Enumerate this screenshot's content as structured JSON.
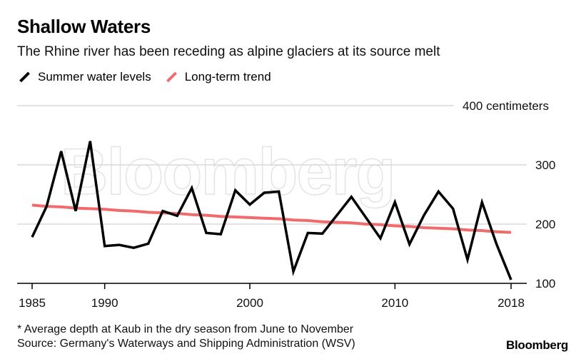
{
  "header": {
    "title": "Shallow Waters",
    "subtitle": "The Rhine river has been receding as alpine glaciers at its source melt"
  },
  "legend": {
    "items": [
      {
        "label": "Summer water levels",
        "color": "#000000"
      },
      {
        "label": "Long-term trend",
        "color": "#f06b6b"
      }
    ]
  },
  "footer": {
    "note": "* Average depth at Kaub in the dry season from June to November",
    "source": "Source: Germany's Waterways and Shipping Administration (WSV)",
    "brand": "Bloomberg",
    "watermark": "Bloomberg"
  },
  "chart_data": {
    "type": "line",
    "title": "Shallow Waters",
    "subtitle": "The Rhine river has been receding as alpine glaciers at its source melt",
    "xlabel": "",
    "ylabel": "",
    "xlim": [
      1985,
      2018
    ],
    "ylim": [
      100,
      400
    ],
    "x_ticks": [
      {
        "value": 1985,
        "label": "1985"
      },
      {
        "value": 1990,
        "label": "1990"
      },
      {
        "value": 2000,
        "label": "2000"
      },
      {
        "value": 2010,
        "label": "2010"
      },
      {
        "value": 2018,
        "label": "2018"
      }
    ],
    "y_ticks": [
      {
        "value": 100,
        "label": "100"
      },
      {
        "value": 200,
        "label": "200"
      },
      {
        "value": 300,
        "label": "300"
      },
      {
        "value": 400,
        "label": "400 centimeters"
      }
    ],
    "grid": true,
    "legend_position": "top-left",
    "x": [
      1985,
      1986,
      1987,
      1988,
      1989,
      1990,
      1991,
      1992,
      1993,
      1994,
      1995,
      1996,
      1997,
      1998,
      1999,
      2000,
      2001,
      2002,
      2003,
      2004,
      2005,
      2006,
      2007,
      2008,
      2009,
      2010,
      2011,
      2012,
      2013,
      2014,
      2015,
      2016,
      2017,
      2018
    ],
    "series": [
      {
        "name": "Summer water levels",
        "color": "#000000",
        "values": [
          178,
          230,
          323,
          222,
          340,
          163,
          165,
          160,
          167,
          222,
          214,
          261,
          185,
          183,
          257,
          233,
          253,
          255,
          120,
          185,
          184,
          215,
          246,
          211,
          176,
          237,
          166,
          215,
          255,
          226,
          140,
          237,
          166,
          106
        ]
      },
      {
        "name": "Long-term trend",
        "color": "#f06b6b",
        "values": [
          232,
          230,
          229,
          227,
          226,
          225,
          223,
          222,
          220,
          219,
          218,
          216,
          215,
          213,
          212,
          211,
          210,
          209,
          207,
          206,
          204,
          203,
          202,
          200,
          199,
          197,
          196,
          194,
          193,
          192,
          190,
          189,
          187,
          186
        ]
      }
    ]
  }
}
